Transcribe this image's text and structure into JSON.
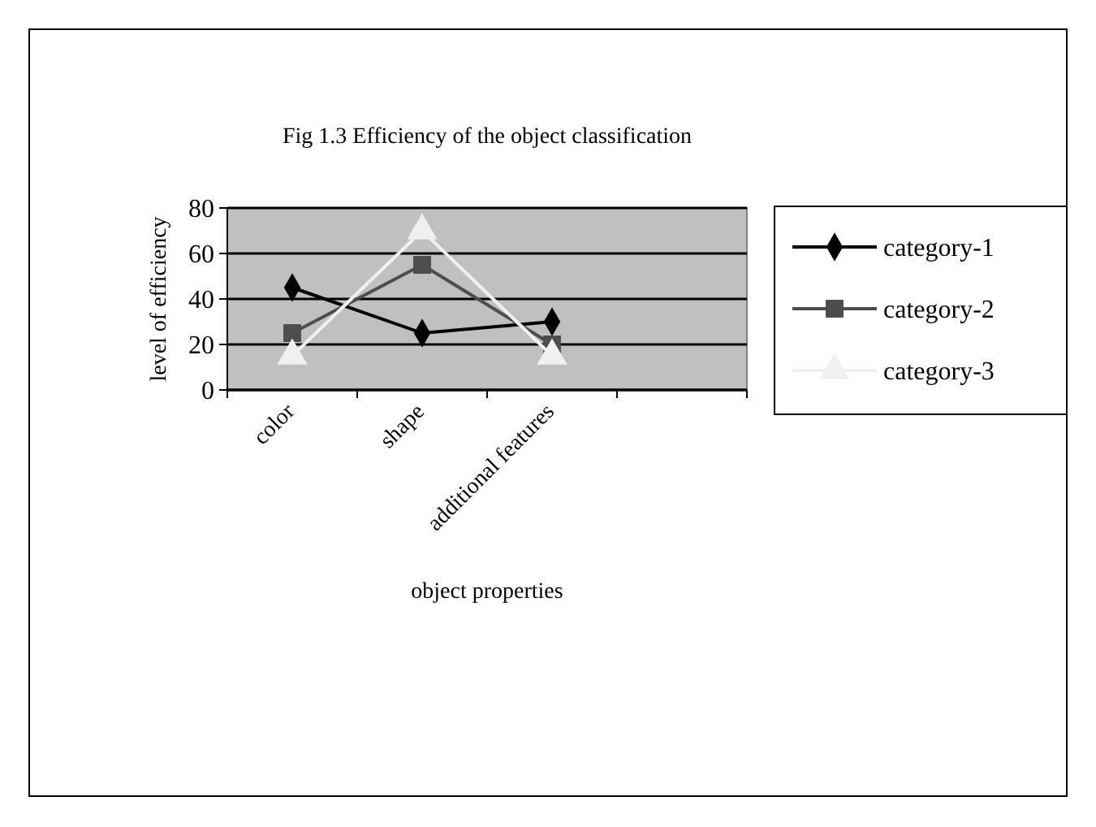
{
  "chart_data": {
    "type": "line",
    "title": "Fig 1.3 Efficiency of the object classification",
    "xlabel": "object properties",
    "ylabel": "level of efficiency",
    "categories": [
      "color",
      "shape",
      "additional features",
      null
    ],
    "series": [
      {
        "name": "category-1",
        "color": "#000000",
        "marker": "diamond",
        "values": [
          45,
          25,
          30,
          null
        ]
      },
      {
        "name": "category-2",
        "color": "#4d4d4d",
        "marker": "square",
        "values": [
          25,
          55,
          20,
          null
        ]
      },
      {
        "name": "category-3",
        "color": "#f0f0f0",
        "marker": "triangle",
        "values": [
          15,
          70,
          15,
          null
        ]
      }
    ],
    "ylim": [
      0,
      80
    ],
    "yticks": [
      0,
      20,
      40,
      60,
      80
    ],
    "grid": "y",
    "legend": "right"
  }
}
